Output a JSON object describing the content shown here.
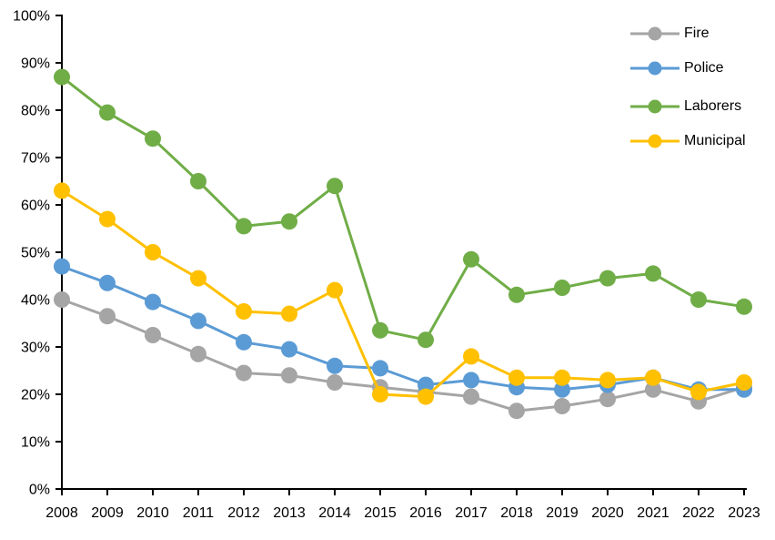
{
  "chart_data": {
    "type": "line",
    "title": "",
    "xlabel": "",
    "ylabel": "",
    "categories": [
      "2008",
      "2009",
      "2010",
      "2011",
      "2012",
      "2013",
      "2014",
      "2015",
      "2016",
      "2017",
      "2018",
      "2019",
      "2020",
      "2021",
      "2022",
      "2023"
    ],
    "series": [
      {
        "name": "Fire",
        "color": "#A5A5A5",
        "values": [
          40,
          36.5,
          32.5,
          28.5,
          24.5,
          24,
          22.5,
          21.5,
          20.5,
          19.5,
          16.5,
          17.5,
          19,
          21,
          18.5,
          21.5
        ]
      },
      {
        "name": "Police",
        "color": "#5B9BD5",
        "values": [
          47,
          43.5,
          39.5,
          35.5,
          31,
          29.5,
          26,
          25.5,
          22,
          23,
          21.5,
          21,
          22,
          23.5,
          21,
          21
        ]
      },
      {
        "name": "Laborers",
        "color": "#70AD47",
        "values": [
          87,
          79.5,
          74,
          65,
          55.5,
          56.5,
          64,
          33.5,
          31.5,
          48.5,
          41,
          42.5,
          44.5,
          45.5,
          40,
          38.5
        ]
      },
      {
        "name": "Municipal",
        "color": "#FFC000",
        "values": [
          63,
          57,
          50,
          44.5,
          37.5,
          37,
          42,
          20,
          19.5,
          28,
          23.5,
          23.5,
          23,
          23.5,
          20.5,
          22.5
        ]
      }
    ],
    "ylim": [
      0,
      100
    ],
    "ytick_step": 10,
    "ytick_labels": [
      "0%",
      "10%",
      "20%",
      "30%",
      "40%",
      "50%",
      "60%",
      "70%",
      "80%",
      "90%",
      "100%"
    ],
    "grid": false,
    "legend_position": "top-right",
    "axis_color": "#000000",
    "background": "#FFFFFF"
  }
}
